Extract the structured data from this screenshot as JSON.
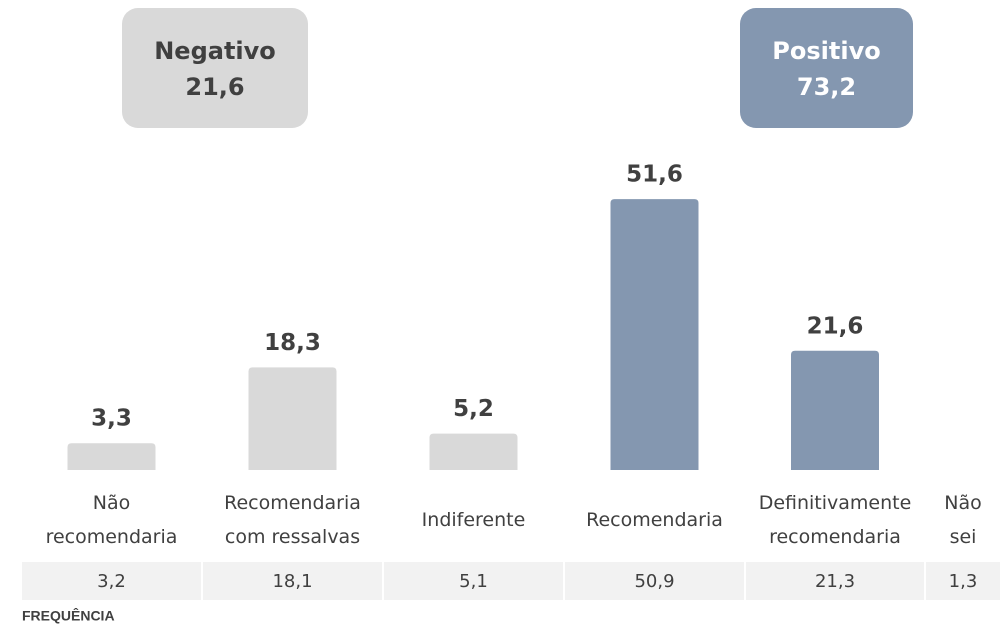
{
  "chart_data": {
    "type": "bar",
    "categories": [
      [
        "Não",
        "recomendaria"
      ],
      [
        "Recomendaria",
        "com ressalvas"
      ],
      [
        "Indiferente"
      ],
      [
        "Recomendaria"
      ],
      [
        "Definitivamente",
        "recomendaria"
      ],
      [
        "Não",
        "sei"
      ]
    ],
    "values": [
      3.3,
      18.3,
      5.2,
      51.6,
      21.6,
      null
    ],
    "value_labels": [
      "3,3",
      "18,3",
      "5,2",
      "51,6",
      "21,6",
      null
    ],
    "colors": [
      "#d9d9d9",
      "#d9d9d9",
      "#d9d9d9",
      "#8497b0",
      "#8497b0",
      null
    ],
    "ylim": [
      -2,
      55
    ],
    "annotations": [
      {
        "title": "Negativo",
        "value": 21.6,
        "label": "21,6",
        "color": "#d9d9d9",
        "text_color": "#404040"
      },
      {
        "title": "Positivo",
        "value": 73.2,
        "label": "73,2",
        "color": "#8497b0",
        "text_color": "#ffffff"
      }
    ],
    "frequency": {
      "label": "FREQUÊNCIA",
      "values": [
        3.2,
        18.1,
        5.1,
        50.9,
        21.3,
        1.3
      ],
      "value_labels": [
        "3,2",
        "18,1",
        "5,1",
        "50,9",
        "21,3",
        "1,3"
      ]
    }
  }
}
